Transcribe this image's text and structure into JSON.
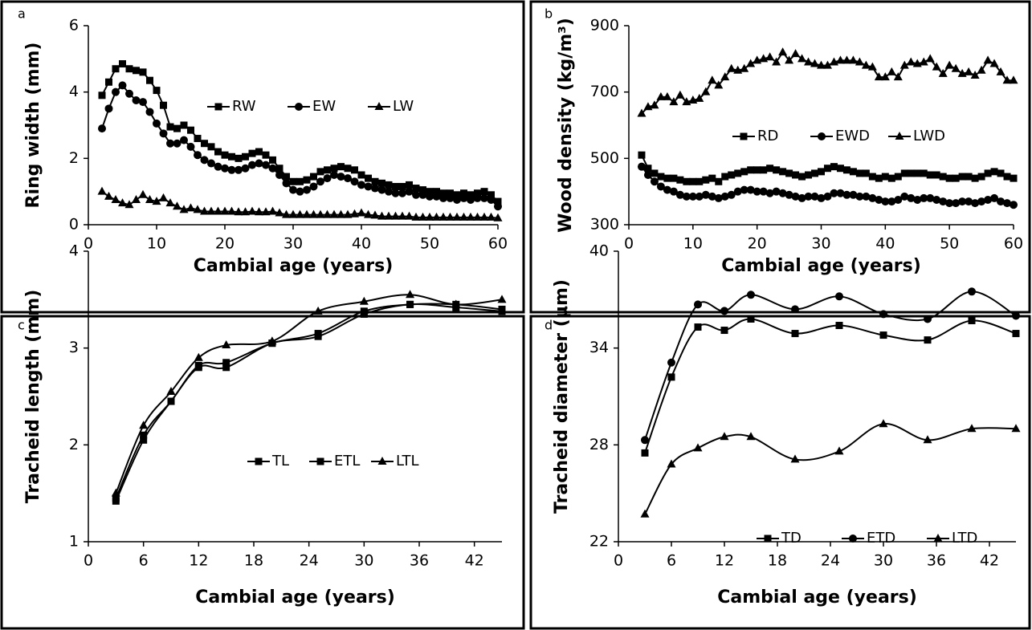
{
  "chart_data": [
    {
      "type": "line",
      "panel": "a",
      "xlabel": "Cambial age (years)",
      "ylabel": "Ring width (mm)",
      "x": [
        2,
        3,
        4,
        5,
        6,
        7,
        8,
        9,
        10,
        11,
        12,
        13,
        14,
        15,
        16,
        17,
        18,
        19,
        20,
        21,
        22,
        23,
        24,
        25,
        26,
        27,
        28,
        29,
        30,
        31,
        32,
        33,
        34,
        35,
        36,
        37,
        38,
        39,
        40,
        41,
        42,
        43,
        44,
        45,
        46,
        47,
        48,
        49,
        50,
        51,
        52,
        53,
        54,
        55,
        56,
        57,
        58,
        59,
        60
      ],
      "xlim": [
        0,
        60
      ],
      "xticks": [
        0,
        10,
        20,
        30,
        40,
        50,
        60
      ],
      "ylim": [
        0,
        6
      ],
      "yticks": [
        0,
        2,
        4,
        6
      ],
      "series": [
        {
          "name": "RW",
          "color": "#000000",
          "marker": "square",
          "values": [
            3.9,
            4.3,
            4.7,
            4.85,
            4.7,
            4.65,
            4.6,
            4.35,
            4.05,
            3.6,
            2.95,
            2.9,
            3.0,
            2.85,
            2.6,
            2.45,
            2.35,
            2.2,
            2.1,
            2.05,
            2.0,
            2.05,
            2.15,
            2.2,
            2.1,
            1.95,
            1.7,
            1.45,
            1.3,
            1.3,
            1.35,
            1.45,
            1.6,
            1.65,
            1.7,
            1.75,
            1.7,
            1.65,
            1.5,
            1.4,
            1.3,
            1.25,
            1.2,
            1.15,
            1.15,
            1.2,
            1.1,
            1.05,
            1.0,
            1.0,
            0.95,
            0.95,
            0.9,
            0.95,
            0.9,
            0.95,
            1.0,
            0.9,
            0.7
          ]
        },
        {
          "name": "EW",
          "color": "#000000",
          "marker": "circle",
          "values": [
            2.9,
            3.5,
            4.0,
            4.2,
            3.95,
            3.75,
            3.7,
            3.4,
            3.05,
            2.75,
            2.45,
            2.45,
            2.55,
            2.35,
            2.1,
            1.95,
            1.85,
            1.75,
            1.7,
            1.65,
            1.65,
            1.7,
            1.8,
            1.85,
            1.8,
            1.7,
            1.5,
            1.25,
            1.05,
            1.0,
            1.05,
            1.15,
            1.3,
            1.4,
            1.5,
            1.45,
            1.4,
            1.3,
            1.2,
            1.15,
            1.1,
            1.05,
            1.0,
            0.95,
            0.95,
            1.0,
            0.9,
            0.9,
            0.85,
            0.85,
            0.8,
            0.8,
            0.75,
            0.8,
            0.75,
            0.8,
            0.8,
            0.75,
            0.55
          ]
        },
        {
          "name": "LW",
          "color": "#000000",
          "marker": "triangle",
          "values": [
            1.0,
            0.85,
            0.75,
            0.65,
            0.6,
            0.75,
            0.9,
            0.75,
            0.7,
            0.8,
            0.65,
            0.55,
            0.45,
            0.5,
            0.45,
            0.4,
            0.4,
            0.4,
            0.4,
            0.4,
            0.38,
            0.38,
            0.4,
            0.38,
            0.38,
            0.4,
            0.35,
            0.3,
            0.3,
            0.3,
            0.3,
            0.3,
            0.3,
            0.3,
            0.3,
            0.3,
            0.3,
            0.32,
            0.35,
            0.3,
            0.28,
            0.25,
            0.25,
            0.25,
            0.25,
            0.25,
            0.22,
            0.22,
            0.22,
            0.22,
            0.22,
            0.22,
            0.22,
            0.22,
            0.22,
            0.22,
            0.22,
            0.22,
            0.2
          ]
        }
      ]
    },
    {
      "type": "line",
      "panel": "b",
      "xlabel": "Cambial age (years)",
      "ylabel": "Wood density (kg/m³)",
      "x": [
        2,
        3,
        4,
        5,
        6,
        7,
        8,
        9,
        10,
        11,
        12,
        13,
        14,
        15,
        16,
        17,
        18,
        19,
        20,
        21,
        22,
        23,
        24,
        25,
        26,
        27,
        28,
        29,
        30,
        31,
        32,
        33,
        34,
        35,
        36,
        37,
        38,
        39,
        40,
        41,
        42,
        43,
        44,
        45,
        46,
        47,
        48,
        49,
        50,
        51,
        52,
        53,
        54,
        55,
        56,
        57,
        58,
        59,
        60
      ],
      "xlim": [
        0,
        60
      ],
      "xticks": [
        0,
        10,
        20,
        30,
        40,
        50,
        60
      ],
      "ylim": [
        300,
        900
      ],
      "yticks": [
        300,
        500,
        700,
        900
      ],
      "series": [
        {
          "name": "RD",
          "color": "#000000",
          "marker": "square",
          "values": [
            510,
            470,
            455,
            445,
            440,
            440,
            435,
            430,
            430,
            430,
            435,
            440,
            430,
            445,
            450,
            455,
            460,
            465,
            465,
            465,
            470,
            465,
            460,
            455,
            450,
            445,
            450,
            455,
            460,
            470,
            475,
            470,
            465,
            460,
            455,
            455,
            445,
            440,
            445,
            440,
            445,
            455,
            455,
            455,
            455,
            450,
            450,
            445,
            440,
            440,
            445,
            445,
            440,
            445,
            455,
            460,
            455,
            445,
            440
          ]
        },
        {
          "name": "EWD",
          "color": "#000000",
          "marker": "circle",
          "values": [
            475,
            450,
            430,
            415,
            405,
            400,
            390,
            385,
            385,
            385,
            390,
            385,
            380,
            385,
            390,
            400,
            405,
            405,
            400,
            400,
            395,
            400,
            395,
            390,
            385,
            380,
            385,
            385,
            380,
            385,
            395,
            395,
            390,
            390,
            385,
            385,
            380,
            375,
            370,
            370,
            375,
            385,
            380,
            375,
            380,
            380,
            375,
            370,
            365,
            365,
            370,
            370,
            365,
            370,
            375,
            380,
            370,
            365,
            360
          ]
        },
        {
          "name": "LWD",
          "color": "#000000",
          "marker": "triangle",
          "values": [
            635,
            655,
            660,
            685,
            685,
            670,
            690,
            670,
            675,
            680,
            700,
            735,
            720,
            745,
            770,
            765,
            770,
            785,
            795,
            800,
            805,
            790,
            820,
            795,
            815,
            800,
            790,
            785,
            780,
            780,
            790,
            795,
            795,
            795,
            790,
            780,
            775,
            745,
            745,
            760,
            745,
            780,
            790,
            785,
            790,
            800,
            775,
            755,
            780,
            770,
            755,
            760,
            750,
            765,
            795,
            785,
            760,
            735,
            735
          ]
        }
      ]
    },
    {
      "type": "line",
      "panel": "c",
      "xlabel": "Cambial age (years)",
      "ylabel": "Tracheid length (mm)",
      "smooth": true,
      "x": [
        3,
        6,
        9,
        12,
        15,
        20,
        25,
        30,
        35,
        40,
        45
      ],
      "xlim": [
        0,
        45
      ],
      "xticks": [
        0,
        6,
        12,
        18,
        24,
        30,
        36,
        42
      ],
      "ylim": [
        1,
        4
      ],
      "yticks": [
        1,
        2,
        3,
        4
      ],
      "series": [
        {
          "name": "TL",
          "color": "#000000",
          "marker": "square",
          "values": [
            1.45,
            2.1,
            2.45,
            2.82,
            2.85,
            3.05,
            3.15,
            3.38,
            3.45,
            3.45,
            3.4
          ]
        },
        {
          "name": "ETL",
          "color": "#000000",
          "marker": "square",
          "values": [
            1.42,
            2.05,
            2.45,
            2.8,
            2.8,
            3.05,
            3.12,
            3.35,
            3.45,
            3.42,
            3.38
          ]
        },
        {
          "name": "LTL",
          "color": "#000000",
          "marker": "triangle",
          "values": [
            1.5,
            2.2,
            2.55,
            2.9,
            3.03,
            3.07,
            3.38,
            3.48,
            3.55,
            3.45,
            3.5
          ]
        }
      ]
    },
    {
      "type": "line",
      "panel": "d",
      "xlabel": "Cambial age (years)",
      "ylabel": "Tracheid diameter (μm)",
      "smooth": true,
      "x": [
        3,
        6,
        9,
        12,
        15,
        20,
        25,
        30,
        35,
        40,
        45
      ],
      "xlim": [
        0,
        45
      ],
      "xticks": [
        0,
        6,
        12,
        18,
        24,
        30,
        36,
        42
      ],
      "ylim": [
        22,
        40
      ],
      "yticks": [
        22,
        28,
        34,
        40
      ],
      "series": [
        {
          "name": "TD",
          "color": "#000000",
          "marker": "square",
          "values": [
            27.5,
            32.2,
            35.3,
            35.1,
            35.8,
            34.9,
            35.4,
            34.8,
            34.5,
            35.7,
            34.9
          ]
        },
        {
          "name": "ETD",
          "color": "#000000",
          "marker": "circle",
          "values": [
            28.3,
            33.1,
            36.7,
            36.3,
            37.3,
            36.4,
            37.2,
            36.1,
            35.8,
            37.5,
            36.0
          ]
        },
        {
          "name": "LTD",
          "color": "#000000",
          "marker": "triangle",
          "values": [
            23.7,
            26.8,
            27.8,
            28.5,
            28.5,
            27.1,
            27.6,
            29.3,
            28.3,
            29.0,
            29.0
          ]
        }
      ]
    }
  ]
}
